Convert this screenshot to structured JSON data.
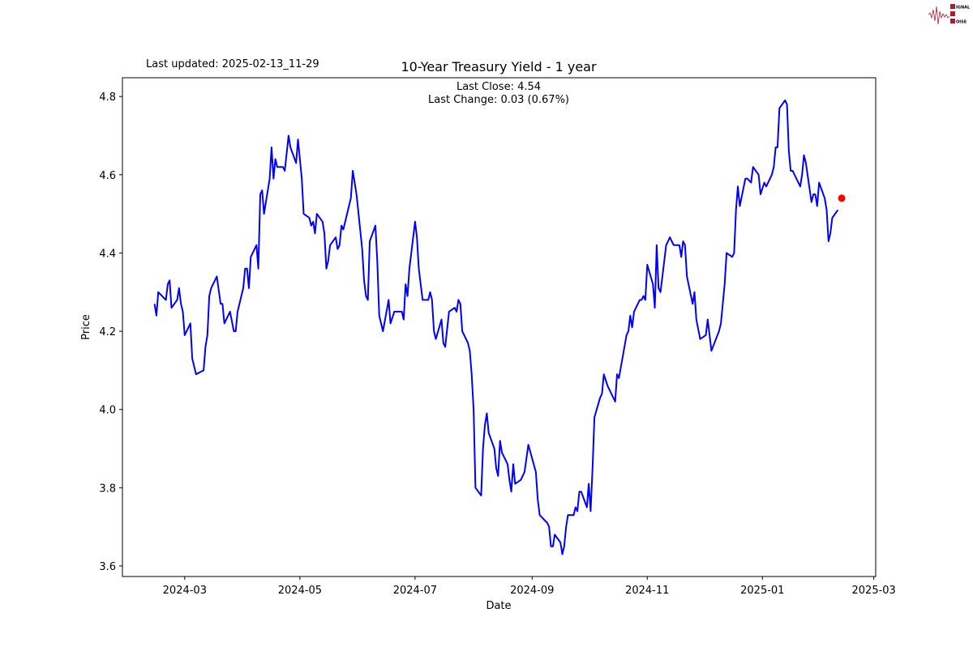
{
  "header": {
    "last_updated": "Last updated: 2025-02-13_11-29",
    "last_close": "Last Close: 4.54",
    "last_change": "Last Change: 0.03 (0.67%)"
  },
  "logo": {
    "text": "SIGNAL 2 NOISE",
    "color": "#b01c2e"
  },
  "chart_data": {
    "type": "line",
    "title": "10-Year Treasury Yield - 1 year",
    "xlabel": "Date",
    "ylabel": "Price",
    "xlim": [
      "2024-01-28",
      "2025-03-02"
    ],
    "ylim": [
      3.573,
      4.848
    ],
    "xticks": [
      "2024-03",
      "2024-05",
      "2024-07",
      "2024-09",
      "2024-11",
      "2025-01",
      "2025-03"
    ],
    "yticks": [
      3.6,
      3.8,
      4.0,
      4.2,
      4.4,
      4.6,
      4.8
    ],
    "grid": false,
    "line_color": "#0000ff",
    "marker_color": "#ff0000",
    "series": [
      {
        "points": [
          [
            "2024-02-14",
            4.27
          ],
          [
            "2024-02-15",
            4.24
          ],
          [
            "2024-02-16",
            4.3
          ],
          [
            "2024-02-20",
            4.28
          ],
          [
            "2024-02-21",
            4.32
          ],
          [
            "2024-02-22",
            4.33
          ],
          [
            "2024-02-23",
            4.26
          ],
          [
            "2024-02-26",
            4.28
          ],
          [
            "2024-02-27",
            4.31
          ],
          [
            "2024-02-28",
            4.27
          ],
          [
            "2024-02-29",
            4.25
          ],
          [
            "2024-03-01",
            4.19
          ],
          [
            "2024-03-04",
            4.22
          ],
          [
            "2024-03-05",
            4.13
          ],
          [
            "2024-03-07",
            4.09
          ],
          [
            "2024-03-11",
            4.1
          ],
          [
            "2024-03-12",
            4.16
          ],
          [
            "2024-03-13",
            4.19
          ],
          [
            "2024-03-14",
            4.29
          ],
          [
            "2024-03-15",
            4.31
          ],
          [
            "2024-03-18",
            4.34
          ],
          [
            "2024-03-20",
            4.27
          ],
          [
            "2024-03-21",
            4.27
          ],
          [
            "2024-03-22",
            4.22
          ],
          [
            "2024-03-25",
            4.25
          ],
          [
            "2024-03-27",
            4.2
          ],
          [
            "2024-03-28",
            4.2
          ],
          [
            "2024-03-29",
            4.25
          ],
          [
            "2024-04-01",
            4.31
          ],
          [
            "2024-04-02",
            4.36
          ],
          [
            "2024-04-03",
            4.36
          ],
          [
            "2024-04-04",
            4.31
          ],
          [
            "2024-04-05",
            4.39
          ],
          [
            "2024-04-08",
            4.42
          ],
          [
            "2024-04-09",
            4.36
          ],
          [
            "2024-04-10",
            4.55
          ],
          [
            "2024-04-11",
            4.56
          ],
          [
            "2024-04-12",
            4.5
          ],
          [
            "2024-04-15",
            4.59
          ],
          [
            "2024-04-16",
            4.67
          ],
          [
            "2024-04-17",
            4.59
          ],
          [
            "2024-04-18",
            4.64
          ],
          [
            "2024-04-19",
            4.62
          ],
          [
            "2024-04-22",
            4.62
          ],
          [
            "2024-04-23",
            4.61
          ],
          [
            "2024-04-25",
            4.7
          ],
          [
            "2024-04-26",
            4.67
          ],
          [
            "2024-04-29",
            4.63
          ],
          [
            "2024-04-30",
            4.69
          ],
          [
            "2024-05-02",
            4.59
          ],
          [
            "2024-05-03",
            4.5
          ],
          [
            "2024-05-06",
            4.49
          ],
          [
            "2024-05-07",
            4.47
          ],
          [
            "2024-05-08",
            4.48
          ],
          [
            "2024-05-09",
            4.45
          ],
          [
            "2024-05-10",
            4.5
          ],
          [
            "2024-05-13",
            4.48
          ],
          [
            "2024-05-14",
            4.45
          ],
          [
            "2024-05-15",
            4.36
          ],
          [
            "2024-05-16",
            4.38
          ],
          [
            "2024-05-17",
            4.42
          ],
          [
            "2024-05-20",
            4.44
          ],
          [
            "2024-05-21",
            4.41
          ],
          [
            "2024-05-22",
            4.42
          ],
          [
            "2024-05-23",
            4.47
          ],
          [
            "2024-05-24",
            4.46
          ],
          [
            "2024-05-28",
            4.54
          ],
          [
            "2024-05-29",
            4.61
          ],
          [
            "2024-05-31",
            4.55
          ],
          [
            "2024-06-03",
            4.41
          ],
          [
            "2024-06-04",
            4.33
          ],
          [
            "2024-06-05",
            4.29
          ],
          [
            "2024-06-06",
            4.28
          ],
          [
            "2024-06-07",
            4.43
          ],
          [
            "2024-06-10",
            4.47
          ],
          [
            "2024-06-11",
            4.38
          ],
          [
            "2024-06-12",
            4.24
          ],
          [
            "2024-06-14",
            4.2
          ],
          [
            "2024-06-17",
            4.28
          ],
          [
            "2024-06-18",
            4.22
          ],
          [
            "2024-06-20",
            4.25
          ],
          [
            "2024-06-24",
            4.25
          ],
          [
            "2024-06-25",
            4.23
          ],
          [
            "2024-06-26",
            4.32
          ],
          [
            "2024-06-27",
            4.29
          ],
          [
            "2024-06-28",
            4.36
          ],
          [
            "2024-07-01",
            4.48
          ],
          [
            "2024-07-02",
            4.44
          ],
          [
            "2024-07-03",
            4.36
          ],
          [
            "2024-07-05",
            4.28
          ],
          [
            "2024-07-08",
            4.28
          ],
          [
            "2024-07-09",
            4.3
          ],
          [
            "2024-07-10",
            4.28
          ],
          [
            "2024-07-11",
            4.2
          ],
          [
            "2024-07-12",
            4.18
          ],
          [
            "2024-07-15",
            4.23
          ],
          [
            "2024-07-16",
            4.17
          ],
          [
            "2024-07-17",
            4.16
          ],
          [
            "2024-07-19",
            4.25
          ],
          [
            "2024-07-22",
            4.26
          ],
          [
            "2024-07-23",
            4.25
          ],
          [
            "2024-07-24",
            4.28
          ],
          [
            "2024-07-25",
            4.27
          ],
          [
            "2024-07-26",
            4.2
          ],
          [
            "2024-07-29",
            4.17
          ],
          [
            "2024-07-30",
            4.15
          ],
          [
            "2024-07-31",
            4.09
          ],
          [
            "2024-08-01",
            4.0
          ],
          [
            "2024-08-02",
            3.8
          ],
          [
            "2024-08-05",
            3.78
          ],
          [
            "2024-08-06",
            3.9
          ],
          [
            "2024-08-07",
            3.96
          ],
          [
            "2024-08-08",
            3.99
          ],
          [
            "2024-08-09",
            3.94
          ],
          [
            "2024-08-12",
            3.9
          ],
          [
            "2024-08-13",
            3.85
          ],
          [
            "2024-08-14",
            3.83
          ],
          [
            "2024-08-15",
            3.92
          ],
          [
            "2024-08-16",
            3.89
          ],
          [
            "2024-08-19",
            3.86
          ],
          [
            "2024-08-20",
            3.82
          ],
          [
            "2024-08-21",
            3.79
          ],
          [
            "2024-08-22",
            3.86
          ],
          [
            "2024-08-23",
            3.81
          ],
          [
            "2024-08-26",
            3.82
          ],
          [
            "2024-08-27",
            3.83
          ],
          [
            "2024-08-28",
            3.84
          ],
          [
            "2024-08-30",
            3.91
          ],
          [
            "2024-09-03",
            3.84
          ],
          [
            "2024-09-04",
            3.77
          ],
          [
            "2024-09-05",
            3.73
          ],
          [
            "2024-09-09",
            3.71
          ],
          [
            "2024-09-10",
            3.7
          ],
          [
            "2024-09-11",
            3.65
          ],
          [
            "2024-09-12",
            3.65
          ],
          [
            "2024-09-13",
            3.68
          ],
          [
            "2024-09-16",
            3.66
          ],
          [
            "2024-09-17",
            3.63
          ],
          [
            "2024-09-18",
            3.65
          ],
          [
            "2024-09-19",
            3.7
          ],
          [
            "2024-09-20",
            3.73
          ],
          [
            "2024-09-23",
            3.73
          ],
          [
            "2024-09-24",
            3.75
          ],
          [
            "2024-09-25",
            3.74
          ],
          [
            "2024-09-26",
            3.79
          ],
          [
            "2024-09-27",
            3.79
          ],
          [
            "2024-09-30",
            3.75
          ],
          [
            "2024-10-01",
            3.81
          ],
          [
            "2024-10-02",
            3.74
          ],
          [
            "2024-10-03",
            3.85
          ],
          [
            "2024-10-04",
            3.98
          ],
          [
            "2024-10-07",
            4.03
          ],
          [
            "2024-10-08",
            4.04
          ],
          [
            "2024-10-09",
            4.09
          ],
          [
            "2024-10-11",
            4.06
          ],
          [
            "2024-10-15",
            4.02
          ],
          [
            "2024-10-16",
            4.09
          ],
          [
            "2024-10-17",
            4.08
          ],
          [
            "2024-10-21",
            4.19
          ],
          [
            "2024-10-22",
            4.2
          ],
          [
            "2024-10-23",
            4.24
          ],
          [
            "2024-10-24",
            4.21
          ],
          [
            "2024-10-25",
            4.25
          ],
          [
            "2024-10-28",
            4.28
          ],
          [
            "2024-10-29",
            4.28
          ],
          [
            "2024-10-30",
            4.29
          ],
          [
            "2024-10-31",
            4.28
          ],
          [
            "2024-11-01",
            4.37
          ],
          [
            "2024-11-04",
            4.32
          ],
          [
            "2024-11-05",
            4.26
          ],
          [
            "2024-11-06",
            4.42
          ],
          [
            "2024-11-07",
            4.31
          ],
          [
            "2024-11-08",
            4.3
          ],
          [
            "2024-11-11",
            4.42
          ],
          [
            "2024-11-12",
            4.43
          ],
          [
            "2024-11-13",
            4.44
          ],
          [
            "2024-11-14",
            4.43
          ],
          [
            "2024-11-15",
            4.42
          ],
          [
            "2024-11-18",
            4.42
          ],
          [
            "2024-11-19",
            4.39
          ],
          [
            "2024-11-20",
            4.43
          ],
          [
            "2024-11-21",
            4.42
          ],
          [
            "2024-11-22",
            4.34
          ],
          [
            "2024-11-25",
            4.27
          ],
          [
            "2024-11-26",
            4.3
          ],
          [
            "2024-11-27",
            4.23
          ],
          [
            "2024-11-29",
            4.18
          ],
          [
            "2024-12-02",
            4.19
          ],
          [
            "2024-12-03",
            4.23
          ],
          [
            "2024-12-04",
            4.19
          ],
          [
            "2024-12-05",
            4.15
          ],
          [
            "2024-12-09",
            4.2
          ],
          [
            "2024-12-10",
            4.22
          ],
          [
            "2024-12-11",
            4.27
          ],
          [
            "2024-12-12",
            4.32
          ],
          [
            "2024-12-13",
            4.4
          ],
          [
            "2024-12-16",
            4.39
          ],
          [
            "2024-12-17",
            4.4
          ],
          [
            "2024-12-18",
            4.51
          ],
          [
            "2024-12-19",
            4.57
          ],
          [
            "2024-12-20",
            4.52
          ],
          [
            "2024-12-23",
            4.59
          ],
          [
            "2024-12-24",
            4.59
          ],
          [
            "2024-12-26",
            4.58
          ],
          [
            "2024-12-27",
            4.62
          ],
          [
            "2024-12-30",
            4.6
          ],
          [
            "2024-12-31",
            4.55
          ],
          [
            "2025-01-02",
            4.58
          ],
          [
            "2025-01-03",
            4.57
          ],
          [
            "2025-01-06",
            4.6
          ],
          [
            "2025-01-07",
            4.62
          ],
          [
            "2025-01-08",
            4.67
          ],
          [
            "2025-01-09",
            4.67
          ],
          [
            "2025-01-10",
            4.77
          ],
          [
            "2025-01-13",
            4.79
          ],
          [
            "2025-01-14",
            4.78
          ],
          [
            "2025-01-15",
            4.66
          ],
          [
            "2025-01-16",
            4.61
          ],
          [
            "2025-01-17",
            4.61
          ],
          [
            "2025-01-21",
            4.57
          ],
          [
            "2025-01-22",
            4.6
          ],
          [
            "2025-01-23",
            4.65
          ],
          [
            "2025-01-24",
            4.63
          ],
          [
            "2025-01-27",
            4.53
          ],
          [
            "2025-01-28",
            4.55
          ],
          [
            "2025-01-29",
            4.55
          ],
          [
            "2025-01-30",
            4.52
          ],
          [
            "2025-01-31",
            4.58
          ],
          [
            "2025-02-03",
            4.54
          ],
          [
            "2025-02-04",
            4.51
          ],
          [
            "2025-02-05",
            4.43
          ],
          [
            "2025-02-06",
            4.45
          ],
          [
            "2025-02-07",
            4.49
          ],
          [
            "2025-02-10",
            4.51
          ]
        ]
      }
    ],
    "last_point": [
      "2025-02-12",
      4.54
    ]
  }
}
